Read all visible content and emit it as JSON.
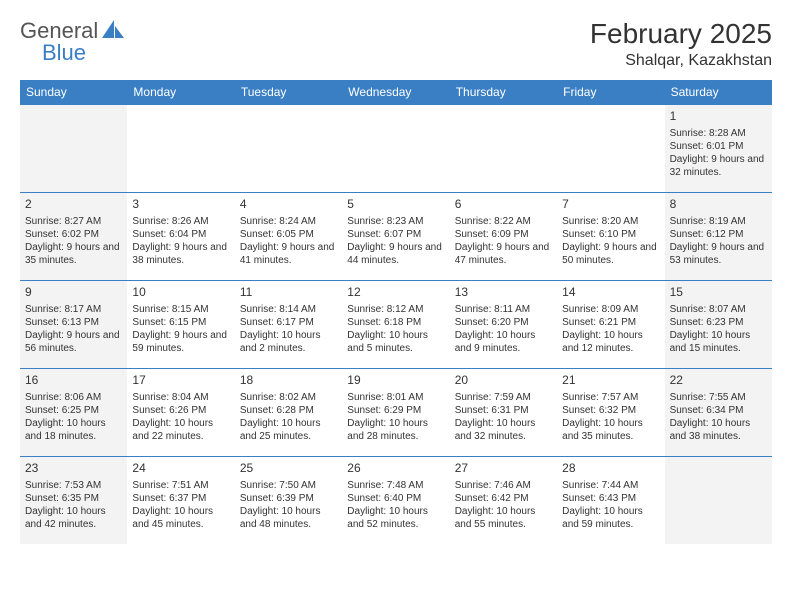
{
  "logo": {
    "text1": "General",
    "text2": "Blue"
  },
  "title": "February 2025",
  "location": "Shalqar, Kazakhstan",
  "colors": {
    "accent": "#3a7fc4",
    "shade": "#f3f3f3",
    "background": "#ffffff",
    "text": "#333333"
  },
  "dayNames": [
    "Sunday",
    "Monday",
    "Tuesday",
    "Wednesday",
    "Thursday",
    "Friday",
    "Saturday"
  ],
  "weeks": [
    [
      {
        "day": "",
        "sunrise": "",
        "sunset": "",
        "daylight": "",
        "shade": true
      },
      {
        "day": "",
        "sunrise": "",
        "sunset": "",
        "daylight": "",
        "shade": false
      },
      {
        "day": "",
        "sunrise": "",
        "sunset": "",
        "daylight": "",
        "shade": false
      },
      {
        "day": "",
        "sunrise": "",
        "sunset": "",
        "daylight": "",
        "shade": false
      },
      {
        "day": "",
        "sunrise": "",
        "sunset": "",
        "daylight": "",
        "shade": false
      },
      {
        "day": "",
        "sunrise": "",
        "sunset": "",
        "daylight": "",
        "shade": false
      },
      {
        "day": "1",
        "sunrise": "Sunrise: 8:28 AM",
        "sunset": "Sunset: 6:01 PM",
        "daylight": "Daylight: 9 hours and 32 minutes.",
        "shade": true
      }
    ],
    [
      {
        "day": "2",
        "sunrise": "Sunrise: 8:27 AM",
        "sunset": "Sunset: 6:02 PM",
        "daylight": "Daylight: 9 hours and 35 minutes.",
        "shade": true
      },
      {
        "day": "3",
        "sunrise": "Sunrise: 8:26 AM",
        "sunset": "Sunset: 6:04 PM",
        "daylight": "Daylight: 9 hours and 38 minutes.",
        "shade": false
      },
      {
        "day": "4",
        "sunrise": "Sunrise: 8:24 AM",
        "sunset": "Sunset: 6:05 PM",
        "daylight": "Daylight: 9 hours and 41 minutes.",
        "shade": false
      },
      {
        "day": "5",
        "sunrise": "Sunrise: 8:23 AM",
        "sunset": "Sunset: 6:07 PM",
        "daylight": "Daylight: 9 hours and 44 minutes.",
        "shade": false
      },
      {
        "day": "6",
        "sunrise": "Sunrise: 8:22 AM",
        "sunset": "Sunset: 6:09 PM",
        "daylight": "Daylight: 9 hours and 47 minutes.",
        "shade": false
      },
      {
        "day": "7",
        "sunrise": "Sunrise: 8:20 AM",
        "sunset": "Sunset: 6:10 PM",
        "daylight": "Daylight: 9 hours and 50 minutes.",
        "shade": false
      },
      {
        "day": "8",
        "sunrise": "Sunrise: 8:19 AM",
        "sunset": "Sunset: 6:12 PM",
        "daylight": "Daylight: 9 hours and 53 minutes.",
        "shade": true
      }
    ],
    [
      {
        "day": "9",
        "sunrise": "Sunrise: 8:17 AM",
        "sunset": "Sunset: 6:13 PM",
        "daylight": "Daylight: 9 hours and 56 minutes.",
        "shade": true
      },
      {
        "day": "10",
        "sunrise": "Sunrise: 8:15 AM",
        "sunset": "Sunset: 6:15 PM",
        "daylight": "Daylight: 9 hours and 59 minutes.",
        "shade": false
      },
      {
        "day": "11",
        "sunrise": "Sunrise: 8:14 AM",
        "sunset": "Sunset: 6:17 PM",
        "daylight": "Daylight: 10 hours and 2 minutes.",
        "shade": false
      },
      {
        "day": "12",
        "sunrise": "Sunrise: 8:12 AM",
        "sunset": "Sunset: 6:18 PM",
        "daylight": "Daylight: 10 hours and 5 minutes.",
        "shade": false
      },
      {
        "day": "13",
        "sunrise": "Sunrise: 8:11 AM",
        "sunset": "Sunset: 6:20 PM",
        "daylight": "Daylight: 10 hours and 9 minutes.",
        "shade": false
      },
      {
        "day": "14",
        "sunrise": "Sunrise: 8:09 AM",
        "sunset": "Sunset: 6:21 PM",
        "daylight": "Daylight: 10 hours and 12 minutes.",
        "shade": false
      },
      {
        "day": "15",
        "sunrise": "Sunrise: 8:07 AM",
        "sunset": "Sunset: 6:23 PM",
        "daylight": "Daylight: 10 hours and 15 minutes.",
        "shade": true
      }
    ],
    [
      {
        "day": "16",
        "sunrise": "Sunrise: 8:06 AM",
        "sunset": "Sunset: 6:25 PM",
        "daylight": "Daylight: 10 hours and 18 minutes.",
        "shade": true
      },
      {
        "day": "17",
        "sunrise": "Sunrise: 8:04 AM",
        "sunset": "Sunset: 6:26 PM",
        "daylight": "Daylight: 10 hours and 22 minutes.",
        "shade": false
      },
      {
        "day": "18",
        "sunrise": "Sunrise: 8:02 AM",
        "sunset": "Sunset: 6:28 PM",
        "daylight": "Daylight: 10 hours and 25 minutes.",
        "shade": false
      },
      {
        "day": "19",
        "sunrise": "Sunrise: 8:01 AM",
        "sunset": "Sunset: 6:29 PM",
        "daylight": "Daylight: 10 hours and 28 minutes.",
        "shade": false
      },
      {
        "day": "20",
        "sunrise": "Sunrise: 7:59 AM",
        "sunset": "Sunset: 6:31 PM",
        "daylight": "Daylight: 10 hours and 32 minutes.",
        "shade": false
      },
      {
        "day": "21",
        "sunrise": "Sunrise: 7:57 AM",
        "sunset": "Sunset: 6:32 PM",
        "daylight": "Daylight: 10 hours and 35 minutes.",
        "shade": false
      },
      {
        "day": "22",
        "sunrise": "Sunrise: 7:55 AM",
        "sunset": "Sunset: 6:34 PM",
        "daylight": "Daylight: 10 hours and 38 minutes.",
        "shade": true
      }
    ],
    [
      {
        "day": "23",
        "sunrise": "Sunrise: 7:53 AM",
        "sunset": "Sunset: 6:35 PM",
        "daylight": "Daylight: 10 hours and 42 minutes.",
        "shade": true
      },
      {
        "day": "24",
        "sunrise": "Sunrise: 7:51 AM",
        "sunset": "Sunset: 6:37 PM",
        "daylight": "Daylight: 10 hours and 45 minutes.",
        "shade": false
      },
      {
        "day": "25",
        "sunrise": "Sunrise: 7:50 AM",
        "sunset": "Sunset: 6:39 PM",
        "daylight": "Daylight: 10 hours and 48 minutes.",
        "shade": false
      },
      {
        "day": "26",
        "sunrise": "Sunrise: 7:48 AM",
        "sunset": "Sunset: 6:40 PM",
        "daylight": "Daylight: 10 hours and 52 minutes.",
        "shade": false
      },
      {
        "day": "27",
        "sunrise": "Sunrise: 7:46 AM",
        "sunset": "Sunset: 6:42 PM",
        "daylight": "Daylight: 10 hours and 55 minutes.",
        "shade": false
      },
      {
        "day": "28",
        "sunrise": "Sunrise: 7:44 AM",
        "sunset": "Sunset: 6:43 PM",
        "daylight": "Daylight: 10 hours and 59 minutes.",
        "shade": false
      },
      {
        "day": "",
        "sunrise": "",
        "sunset": "",
        "daylight": "",
        "shade": true
      }
    ]
  ]
}
